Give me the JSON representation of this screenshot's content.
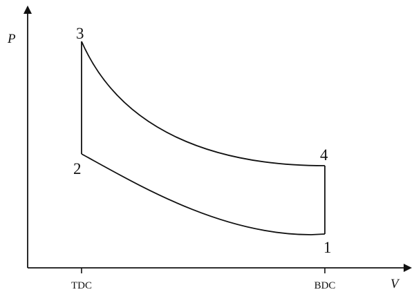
{
  "axes": {
    "y_label": "P",
    "x_label": "V",
    "x_ticks": [
      "TDC",
      "BDC"
    ]
  },
  "points": [
    {
      "id": "1",
      "label": "1"
    },
    {
      "id": "2",
      "label": "2"
    },
    {
      "id": "3",
      "label": "3"
    },
    {
      "id": "4",
      "label": "4"
    }
  ],
  "processes": [
    {
      "from": "1",
      "to": "2",
      "kind": "compression-curve"
    },
    {
      "from": "2",
      "to": "3",
      "kind": "constant-volume"
    },
    {
      "from": "3",
      "to": "4",
      "kind": "expansion-curve"
    },
    {
      "from": "4",
      "to": "1",
      "kind": "constant-volume"
    }
  ],
  "colors": {
    "ink": "#111111",
    "background": "#ffffff"
  }
}
